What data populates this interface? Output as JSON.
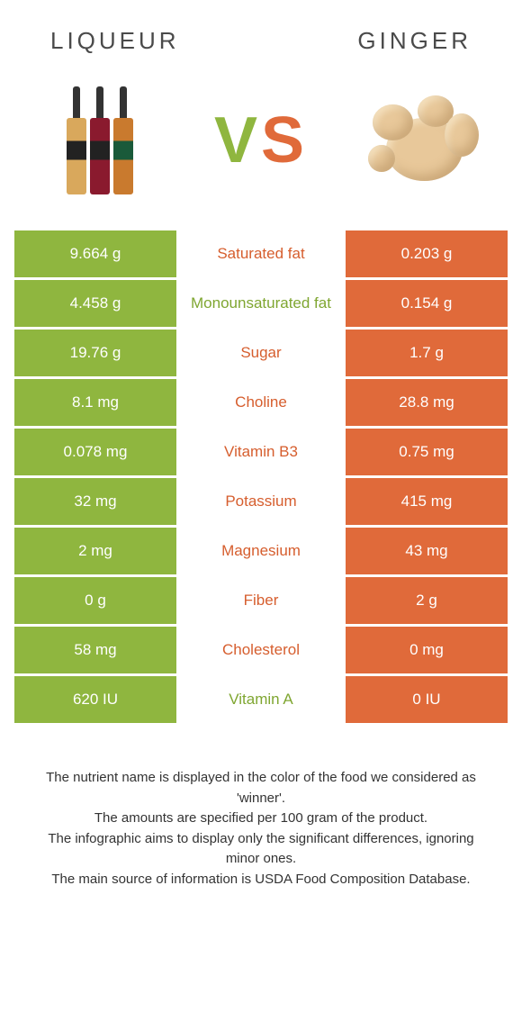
{
  "colors": {
    "green": "#8fb63f",
    "orange": "#e06a3a",
    "text_green": "#7fa631",
    "text_orange": "#d65e2e"
  },
  "header": {
    "left_title": "LIQUEUR",
    "right_title": "GINGER",
    "vs_v": "V",
    "vs_s": "S"
  },
  "rows": [
    {
      "left": "9.664 g",
      "label": "Saturated fat",
      "right": "0.203 g",
      "winner": "orange"
    },
    {
      "left": "4.458 g",
      "label": "Monounsaturated fat",
      "right": "0.154 g",
      "winner": "green"
    },
    {
      "left": "19.76 g",
      "label": "Sugar",
      "right": "1.7 g",
      "winner": "orange"
    },
    {
      "left": "8.1 mg",
      "label": "Choline",
      "right": "28.8 mg",
      "winner": "orange"
    },
    {
      "left": "0.078 mg",
      "label": "Vitamin B3",
      "right": "0.75 mg",
      "winner": "orange"
    },
    {
      "left": "32 mg",
      "label": "Potassium",
      "right": "415 mg",
      "winner": "orange"
    },
    {
      "left": "2 mg",
      "label": "Magnesium",
      "right": "43 mg",
      "winner": "orange"
    },
    {
      "left": "0 g",
      "label": "Fiber",
      "right": "2 g",
      "winner": "orange"
    },
    {
      "left": "58 mg",
      "label": "Cholesterol",
      "right": "0 mg",
      "winner": "orange"
    },
    {
      "left": "620 IU",
      "label": "Vitamin A",
      "right": "0 IU",
      "winner": "green"
    }
  ],
  "footer": {
    "line1": "The nutrient name is displayed in the color of the food we considered as 'winner'.",
    "line2": "The amounts are specified per 100 gram of the product.",
    "line3": "The infographic aims to display only the significant differences, ignoring minor ones.",
    "line4": "The main source of information is USDA Food Composition Database."
  }
}
